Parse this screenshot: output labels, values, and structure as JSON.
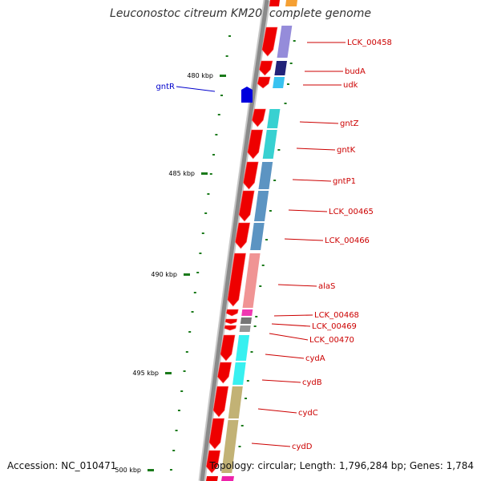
{
  "title": "Leuconostoc citreum KM20, complete genome",
  "footer": {
    "accession": "Accession: NC_010471",
    "summary": "Topology: circular; Length: 1,796,284 bp; Genes: 1,784"
  },
  "colors": {
    "backbone": "#8a8a8a",
    "cds_forward": "#ee0000",
    "gene_label": "#cc0000",
    "reverse_label": "#0000cc",
    "tick": "#1a7a1a"
  },
  "scale_ticks": [
    {
      "label": "480 kbp"
    },
    {
      "label": "485 kbp"
    },
    {
      "label": "490 kbp"
    },
    {
      "label": "495 kbp"
    },
    {
      "label": "500 kbp"
    }
  ],
  "genes": [
    {
      "name": "LCK_00458",
      "strand": "+",
      "color": "#8a7fd6"
    },
    {
      "name": "budA",
      "strand": "+",
      "color": "#0a0a6a"
    },
    {
      "name": "udk",
      "strand": "+",
      "color": "#22bbee"
    },
    {
      "name": "gntR",
      "strand": "-",
      "color": "#0000dd"
    },
    {
      "name": "gntZ",
      "strand": "+",
      "color": "#22cccc"
    },
    {
      "name": "gntK",
      "strand": "+",
      "color": "#22cccc"
    },
    {
      "name": "gntP1",
      "strand": "+",
      "color": "#4a88bb"
    },
    {
      "name": "LCK_00465",
      "strand": "+",
      "color": "#4a88bb"
    },
    {
      "name": "LCK_00466",
      "strand": "+",
      "color": "#4a88bb"
    },
    {
      "name": "alaS",
      "strand": "+",
      "color": "#ee8888"
    },
    {
      "name": "LCK_00468",
      "strand": "+",
      "color": "#ee22aa"
    },
    {
      "name": "LCK_00469",
      "strand": "+",
      "color": "#666666"
    },
    {
      "name": "LCK_00470",
      "strand": "+",
      "color": "#888888"
    },
    {
      "name": "cydA",
      "strand": "+",
      "color": "#22eeee"
    },
    {
      "name": "cydB",
      "strand": "+",
      "color": "#22eeee"
    },
    {
      "name": "cydC",
      "strand": "+",
      "color": "#bbaa66"
    },
    {
      "name": "cydD",
      "strand": "+",
      "color": "#bbaa66"
    }
  ]
}
